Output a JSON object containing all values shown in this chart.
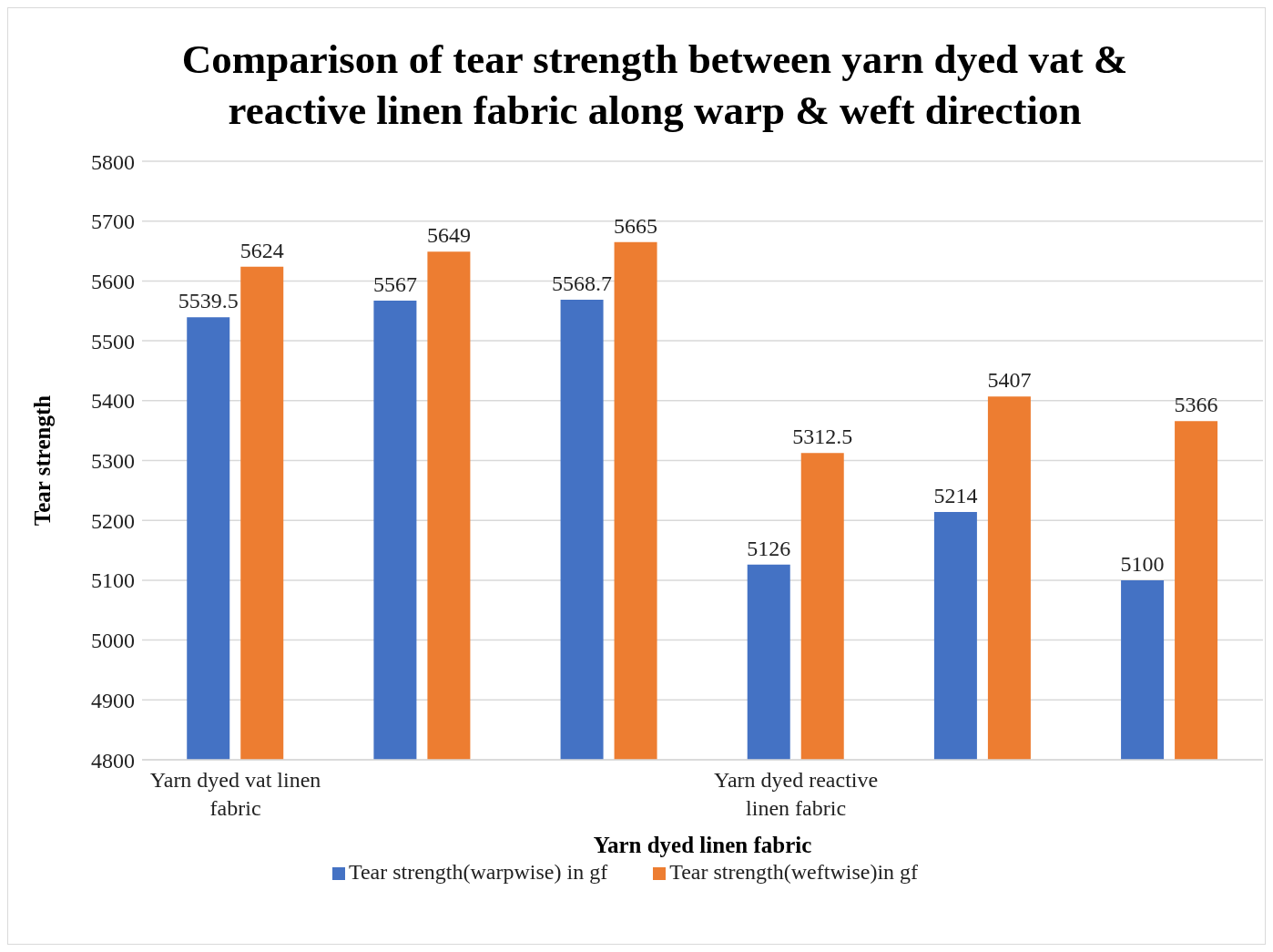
{
  "chart_data": {
    "type": "bar",
    "title": "Comparison of tear strength between yarn dyed vat & reactive linen fabric along warp & weft direction",
    "xlabel": "Yarn dyed linen fabric",
    "ylabel": "Tear strength",
    "categories": [
      "Yarn dyed vat linen fabric",
      null,
      null,
      "Yarn dyed reactive linen fabric",
      null,
      null
    ],
    "series": [
      {
        "name": "Tear strength(warpwise) in gf",
        "color": "#4472c4",
        "values": [
          5539.5,
          5567,
          5568.7,
          5126,
          5214,
          5100
        ]
      },
      {
        "name": "Tear strength(weftwise)in gf",
        "color": "#ed7d31",
        "values": [
          5624,
          5649,
          5665,
          5312.5,
          5407,
          5366
        ]
      }
    ],
    "ylim": [
      4800,
      5800
    ],
    "yticks": [
      4800,
      4900,
      5000,
      5100,
      5200,
      5300,
      5400,
      5500,
      5600,
      5700,
      5800
    ],
    "grid": "y",
    "legend": "bottom",
    "data_labels": true
  }
}
